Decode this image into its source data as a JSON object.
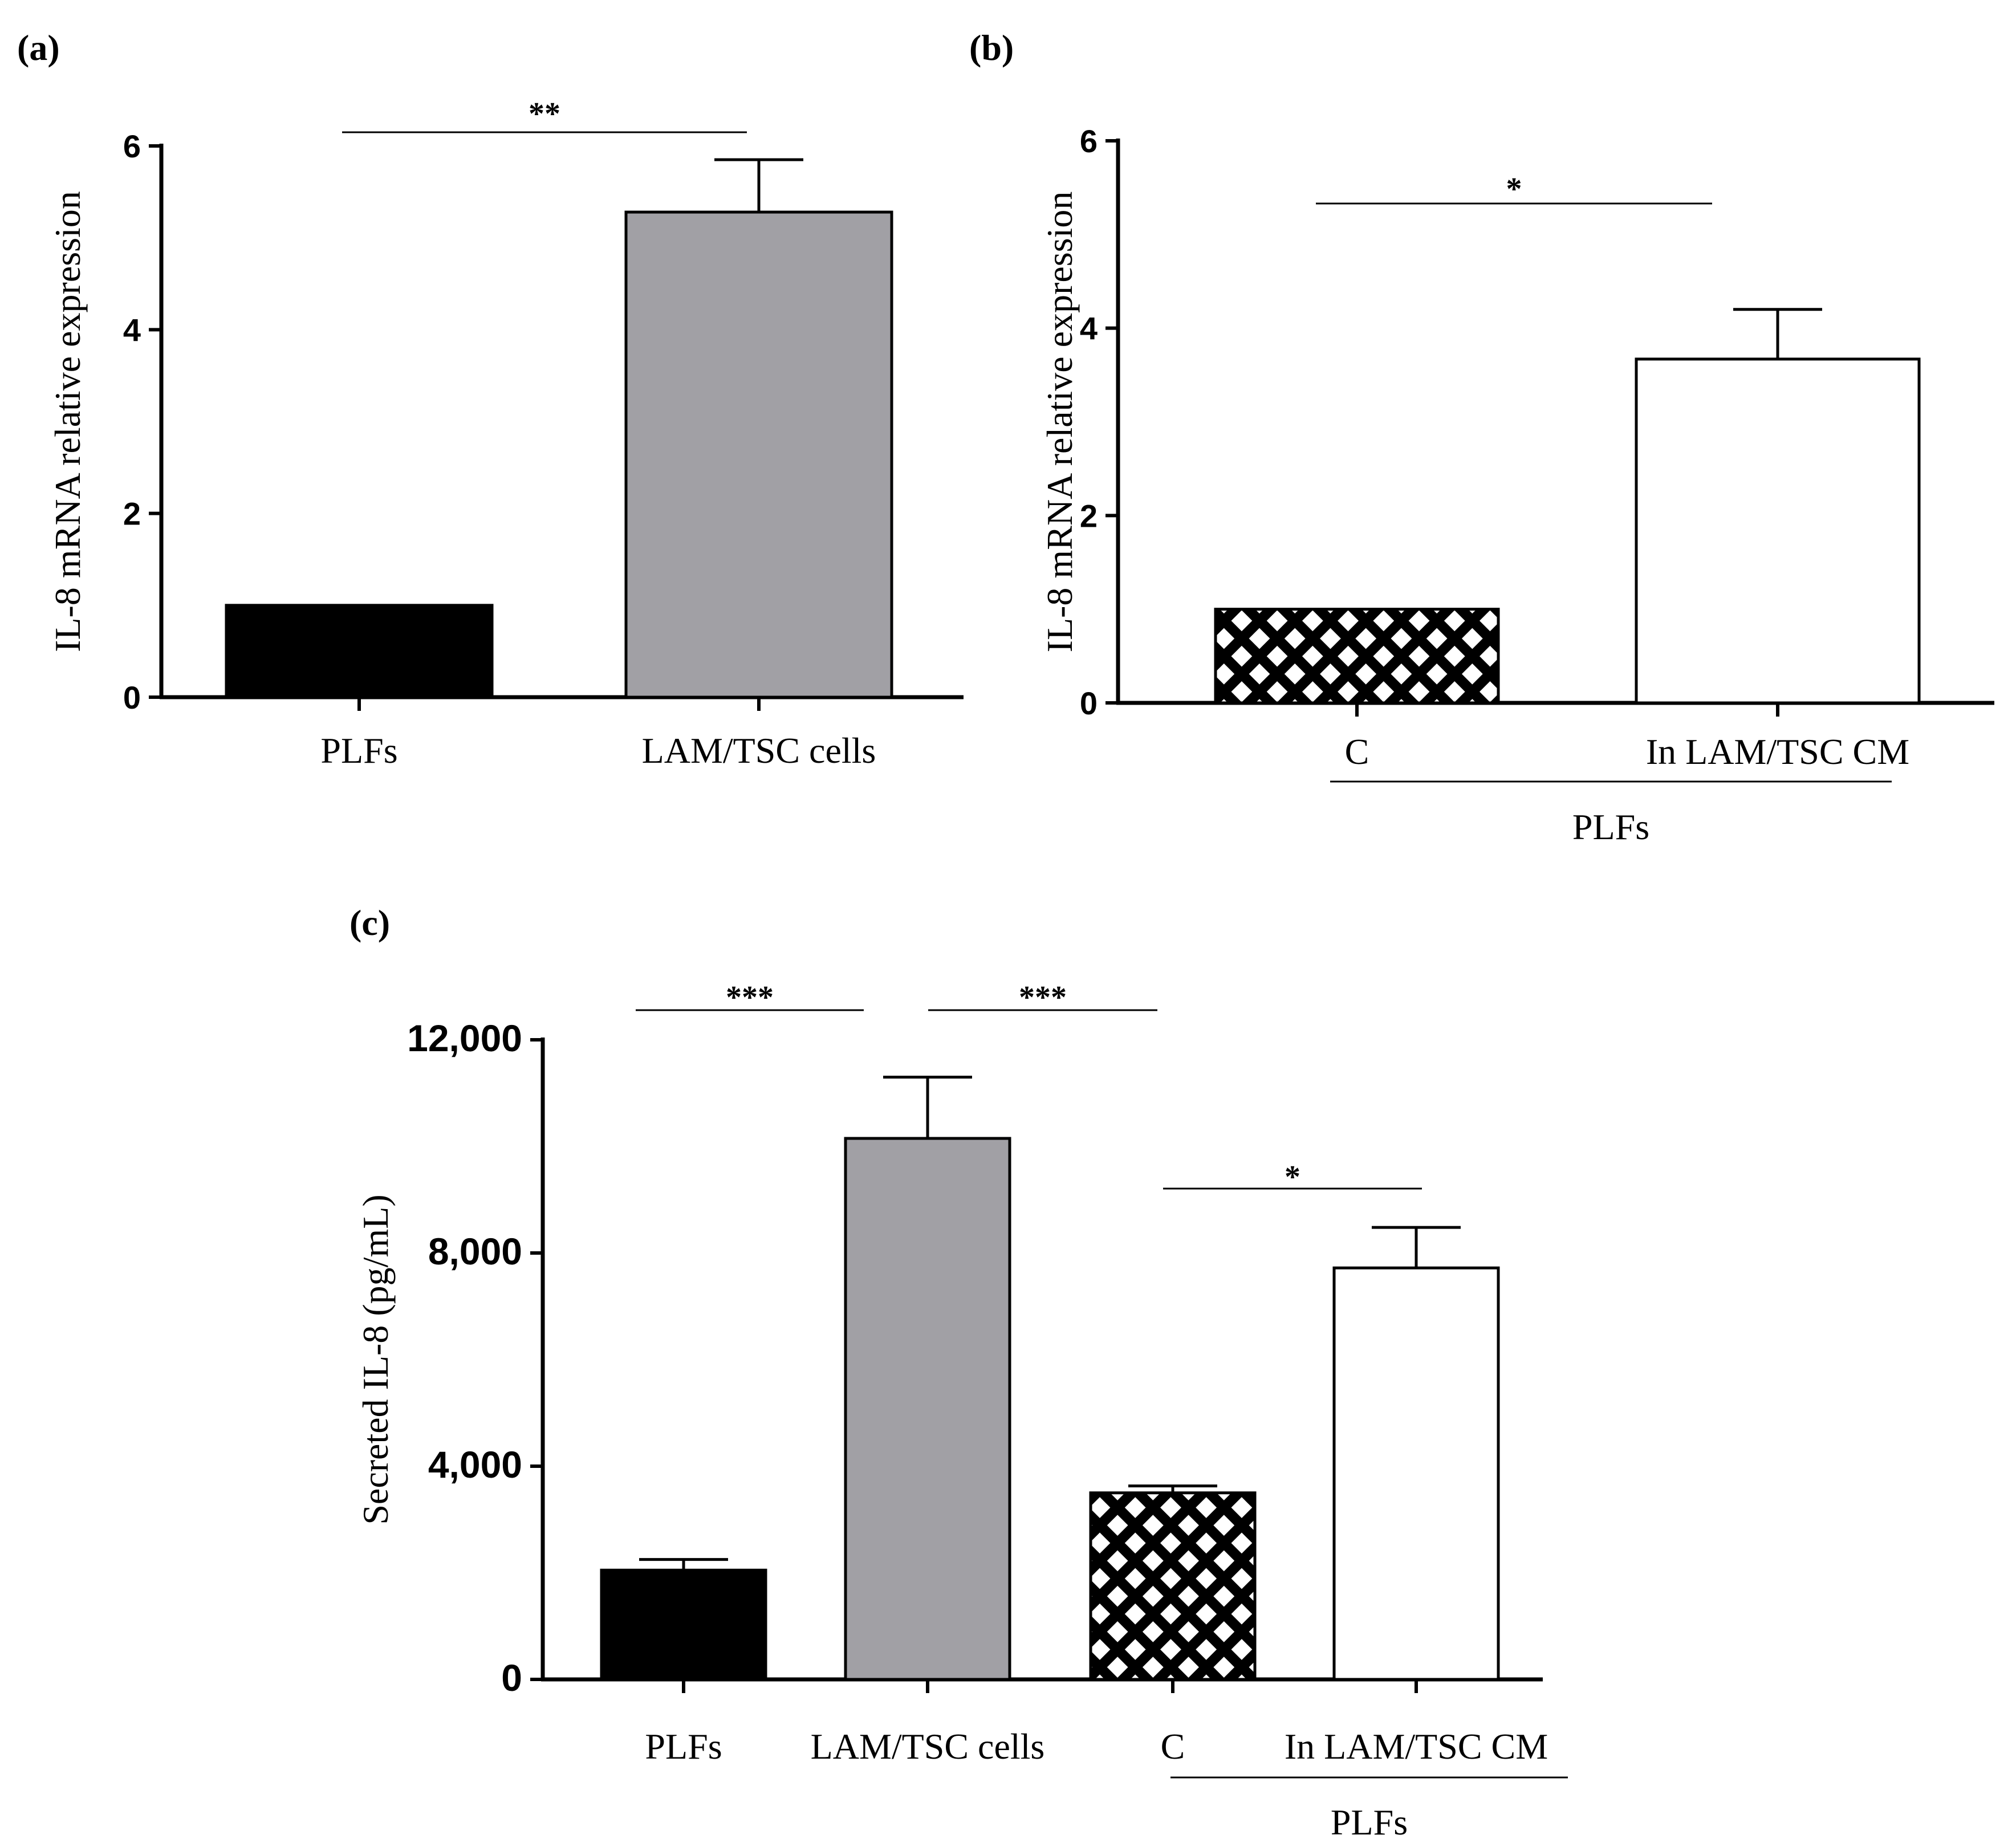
{
  "chart_data": [
    {
      "panel": "(a)",
      "type": "bar",
      "ylabel": "IL-8 mRNA relative expression",
      "ylim": [
        0,
        6
      ],
      "yticks": [
        "0",
        "2",
        "4",
        "6"
      ],
      "categories": [
        "PLFs",
        "LAM/TSC cells"
      ],
      "values": [
        1.0,
        5.28
      ],
      "errors": [
        0,
        0.57
      ],
      "fills": [
        "black",
        "grey"
      ],
      "significance": [
        {
          "from": 0,
          "to": 1,
          "label": "**"
        }
      ]
    },
    {
      "panel": "(b)",
      "type": "bar",
      "ylabel": "IL-8 mRNA relative expression",
      "ylim": [
        0,
        6
      ],
      "yticks": [
        "0",
        "2",
        "4",
        "6"
      ],
      "categories": [
        "C",
        "In LAM/TSC CM"
      ],
      "values": [
        1.0,
        3.67
      ],
      "errors": [
        0,
        0.53
      ],
      "fills": [
        "check",
        "white"
      ],
      "group_label": "PLFs",
      "significance": [
        {
          "from": 0,
          "to": 1,
          "label": "*"
        }
      ]
    },
    {
      "panel": "(c)",
      "type": "bar",
      "ylabel": "Secreted IL-8 (pg/mL)",
      "ylim": [
        0,
        12000
      ],
      "yticks": [
        "0",
        "4,000",
        "8,000",
        "12,000"
      ],
      "categories": [
        "PLFs",
        "LAM/TSC cells",
        "C",
        "In LAM/TSC CM"
      ],
      "values": [
        2050,
        10150,
        3500,
        7720
      ],
      "errors": [
        200,
        1150,
        130,
        760
      ],
      "fills": [
        "black",
        "grey",
        "check",
        "white"
      ],
      "group_label": "PLFs",
      "significance": [
        {
          "from": 0,
          "to": 1,
          "label": "***"
        },
        {
          "from": 1,
          "to": 2,
          "label": "***"
        },
        {
          "from": 2,
          "to": 3,
          "label": "*"
        }
      ]
    }
  ]
}
